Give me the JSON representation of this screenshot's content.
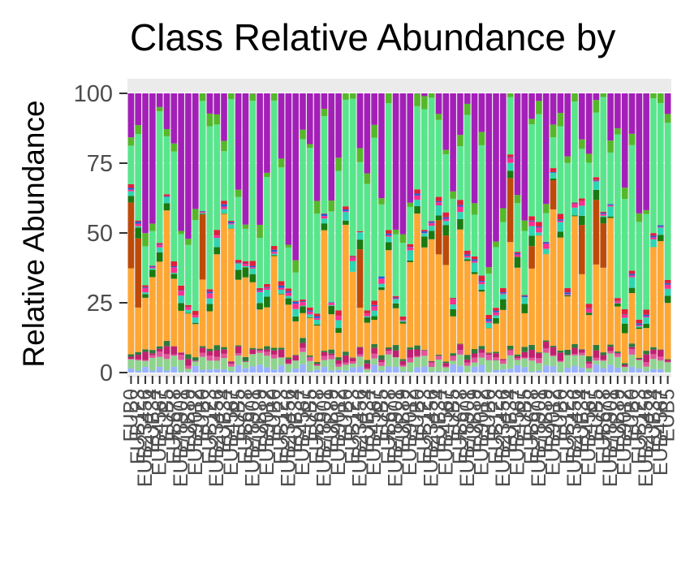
{
  "chart_data": {
    "type": "bar",
    "stacked": true,
    "title": "Class Relative Abundance by",
    "ylabel": "Relative Abundance",
    "xlabel": "",
    "ylim": [
      0,
      100
    ],
    "yticks": [
      "0",
      "25",
      "50",
      "75",
      "100"
    ],
    "legend": "none",
    "grid": true,
    "n_samples": 76,
    "category_label_prefix": "EUB",
    "layer_colors": [
      "#99b3ff",
      "#8ed48e",
      "#e0569b",
      "#c21f6e",
      "#2f7a3a",
      "#ffa733",
      "#bd4a08",
      "#1a7a10",
      "#2ed6b0",
      "#ff2d8f",
      "#1f60d6",
      "#e01f3a",
      "#57e68c",
      "#55b82a",
      "#a31fb8"
    ],
    "layer_values_spec": "per-bar percentages generated in script (approximate reading)"
  }
}
